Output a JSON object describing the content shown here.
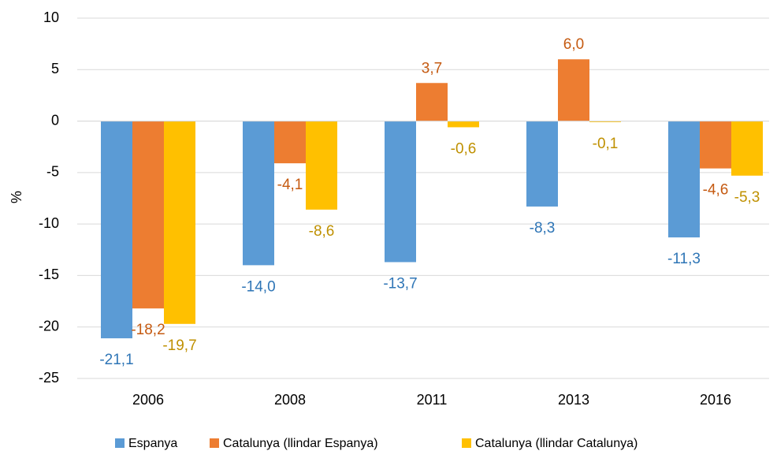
{
  "chart_data": {
    "type": "bar",
    "y_label": "%",
    "categories": [
      "2006",
      "2008",
      "2011",
      "2013",
      "2016"
    ],
    "series": [
      {
        "name": "Espanya",
        "color": "#5b9bd5",
        "label_color": "#2e75b6",
        "values": [
          -21.1,
          -14.0,
          -13.7,
          -8.3,
          -11.3
        ],
        "value_labels": [
          "-21,1",
          "-14,0",
          "-13,7",
          "-8,3",
          "-11,3"
        ]
      },
      {
        "name": "Catalunya (llindar Espanya)",
        "color": "#ed7d31",
        "label_color": "#c55a11",
        "values": [
          -18.2,
          -4.1,
          3.7,
          6.0,
          -4.6
        ],
        "value_labels": [
          "-18,2",
          "-4,1",
          "3,7",
          "6,0",
          "-4,6"
        ]
      },
      {
        "name": "Catalunya (llindar Catalunya)",
        "color": "#ffc000",
        "label_color": "#bf9000",
        "values": [
          -19.7,
          -8.6,
          -0.6,
          -0.1,
          -5.3
        ],
        "value_labels": [
          "-19,7",
          "-8,6",
          "-0,6",
          "-0,1",
          "-5,3"
        ]
      }
    ],
    "ylim": [
      -25,
      10
    ],
    "yticks": [
      10,
      5,
      0,
      -5,
      -10,
      -15,
      -20,
      -25
    ],
    "grid": true
  }
}
